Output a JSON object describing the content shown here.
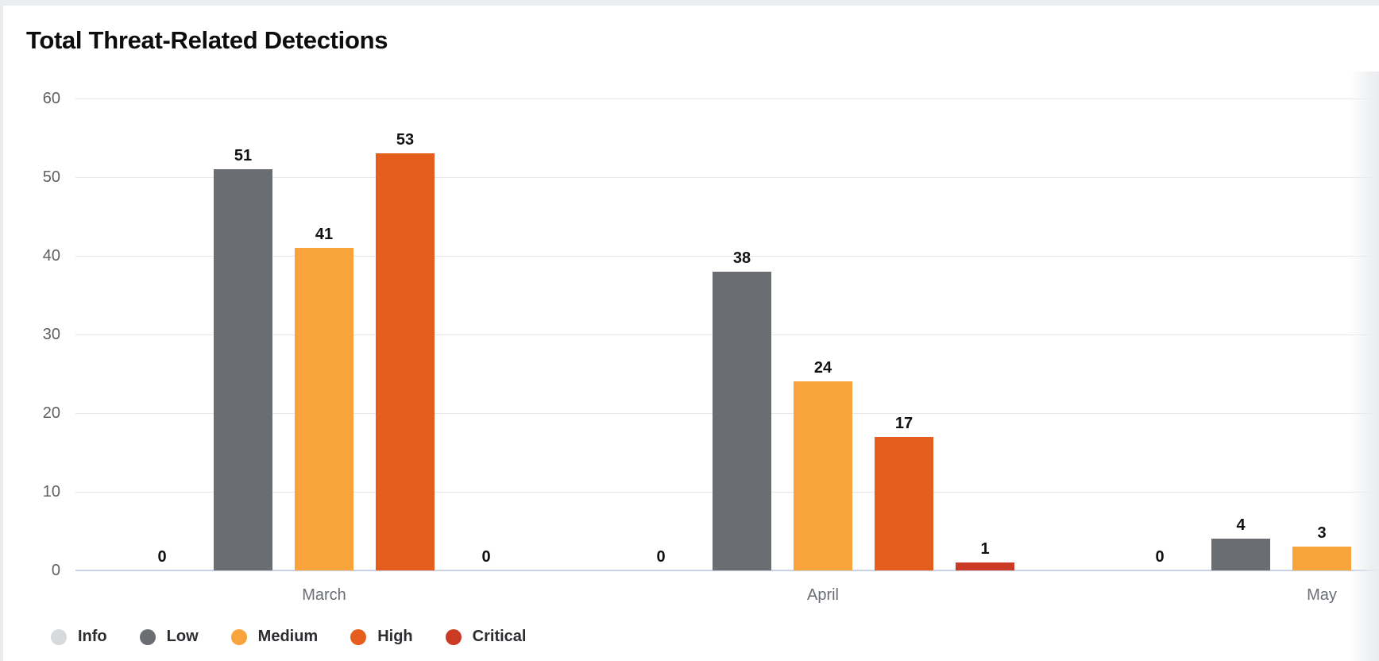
{
  "page": {
    "title": "Total Threat-Related Detections"
  },
  "chart_data": {
    "type": "bar",
    "title": "Total Threat-Related Detections",
    "categories": [
      "March",
      "April",
      "May"
    ],
    "series": [
      {
        "name": "Info",
        "color": "#D7D9DC",
        "values": [
          0,
          0,
          0
        ]
      },
      {
        "name": "Low",
        "color": "#6A6D72",
        "values": [
          51,
          38,
          4
        ]
      },
      {
        "name": "Medium",
        "color": "#F8A33C",
        "values": [
          41,
          24,
          3
        ]
      },
      {
        "name": "High",
        "color": "#E55E1E",
        "values": [
          53,
          17,
          null
        ]
      },
      {
        "name": "Critical",
        "color": "#CA3A24",
        "values": [
          0,
          1,
          null
        ]
      }
    ],
    "ylim": [
      0,
      60
    ],
    "yticks": [
      0,
      10,
      20,
      30,
      40,
      50,
      60
    ],
    "grid": true,
    "value_labels": true,
    "legend": [
      "Info",
      "Low",
      "Medium",
      "High",
      "Critical"
    ],
    "legend_position": "bottom-left",
    "note": "May High and Critical bars are clipped beyond the right edge of the visible area"
  }
}
